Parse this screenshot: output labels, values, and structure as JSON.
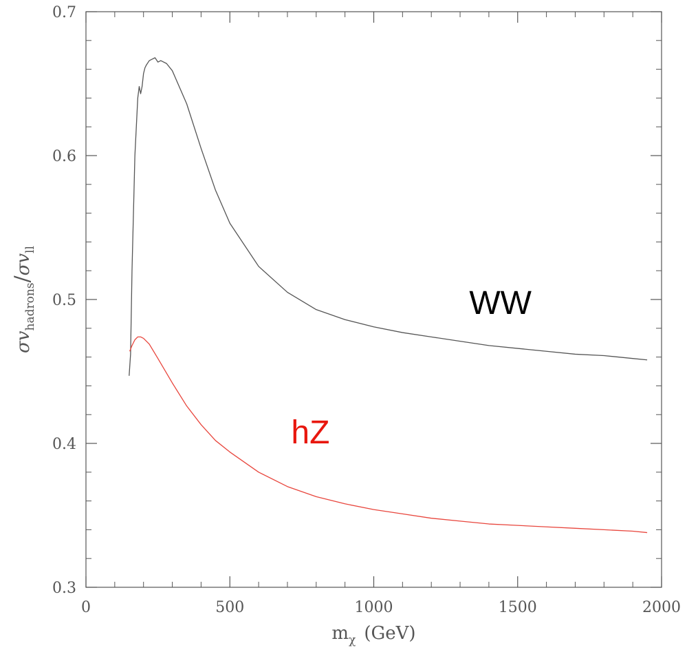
{
  "chart_data": {
    "type": "line",
    "title": "",
    "xlabel": {
      "main": "m",
      "sub": "χ",
      "unit": "(GeV)"
    },
    "ylabel": {
      "num_main": "σv",
      "num_sub": "hadrons",
      "slash": "/",
      "den_main": "σv",
      "den_sub": "ll"
    },
    "xlim": [
      0,
      2000
    ],
    "ylim": [
      0.3,
      0.7
    ],
    "xticks": [
      0,
      500,
      1000,
      1500,
      2000
    ],
    "xtick_labels": [
      "0",
      "500",
      "1000",
      "1500",
      "2000"
    ],
    "yticks": [
      0.3,
      0.4,
      0.5,
      0.6,
      0.7
    ],
    "ytick_labels": [
      "0.3",
      "0.4",
      "0.5",
      "0.6",
      "0.7"
    ],
    "x_minor_step": 100,
    "y_minor_step": 0.02,
    "grid": false,
    "series": [
      {
        "name": "WW",
        "color": "#555555",
        "label_color": "#000000",
        "x": [
          150,
          155,
          160,
          170,
          180,
          185,
          190,
          195,
          200,
          205,
          210,
          220,
          230,
          240,
          250,
          260,
          280,
          300,
          350,
          400,
          450,
          500,
          600,
          700,
          800,
          900,
          1000,
          1100,
          1200,
          1300,
          1400,
          1500,
          1600,
          1700,
          1800,
          1900,
          1950
        ],
        "values": [
          0.447,
          0.462,
          0.52,
          0.6,
          0.64,
          0.648,
          0.643,
          0.648,
          0.657,
          0.661,
          0.663,
          0.666,
          0.667,
          0.668,
          0.665,
          0.666,
          0.664,
          0.659,
          0.636,
          0.605,
          0.576,
          0.553,
          0.523,
          0.505,
          0.493,
          0.486,
          0.481,
          0.477,
          0.474,
          0.471,
          0.468,
          0.466,
          0.464,
          0.462,
          0.461,
          0.459,
          0.458
        ]
      },
      {
        "name": "hZ",
        "color": "#e8453c",
        "label_color": "#e8170e",
        "x": [
          152,
          160,
          170,
          180,
          190,
          200,
          220,
          250,
          300,
          350,
          400,
          450,
          500,
          600,
          700,
          800,
          900,
          1000,
          1100,
          1200,
          1300,
          1400,
          1500,
          1600,
          1700,
          1800,
          1900,
          1950
        ],
        "values": [
          0.464,
          0.468,
          0.472,
          0.474,
          0.474,
          0.473,
          0.469,
          0.459,
          0.442,
          0.426,
          0.413,
          0.402,
          0.394,
          0.38,
          0.37,
          0.363,
          0.358,
          0.354,
          0.351,
          0.348,
          0.346,
          0.344,
          0.343,
          0.342,
          0.341,
          0.34,
          0.339,
          0.338
        ]
      }
    ],
    "annotations": [
      {
        "text": "WW",
        "series": "WW",
        "x": 1440,
        "y": 0.49
      },
      {
        "text": "hZ",
        "series": "hZ",
        "x": 780,
        "y": 0.4
      }
    ]
  }
}
